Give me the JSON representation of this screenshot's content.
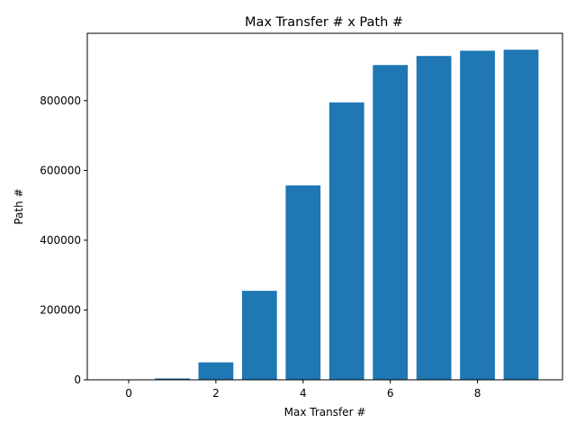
{
  "chart_data": {
    "type": "bar",
    "title": "Max Transfer # x Path #",
    "xlabel": "Max Transfer #",
    "ylabel": "Path #",
    "categories": [
      0,
      1,
      2,
      3,
      4,
      5,
      6,
      7,
      8,
      9
    ],
    "values": [
      100,
      4000,
      50000,
      255000,
      557000,
      795000,
      902000,
      928000,
      943000,
      946000
    ],
    "xlim": [
      -0.95,
      9.95
    ],
    "ylim": [
      0,
      993000
    ],
    "xticks": [
      0,
      2,
      4,
      6,
      8
    ],
    "yticks": [
      0,
      200000,
      400000,
      600000,
      800000
    ],
    "bar_color": "#1f77b4",
    "grid": false,
    "legend": "none"
  }
}
